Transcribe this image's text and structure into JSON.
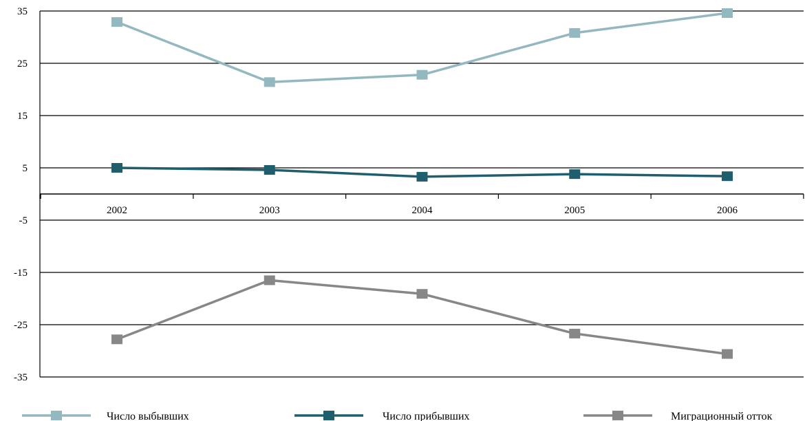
{
  "chart_data": {
    "type": "line",
    "title": "",
    "xlabel": "",
    "ylabel": "",
    "categories": [
      "2002",
      "2003",
      "2004",
      "2005",
      "2006"
    ],
    "ylim": [
      -35,
      35
    ],
    "yticks": [
      35,
      25,
      15,
      5,
      -5,
      -15,
      -25,
      -35
    ],
    "grid": true,
    "legend_position": "bottom",
    "series": [
      {
        "name": "Число выбывших",
        "values": [
          32.9,
          21.4,
          22.8,
          30.8,
          34.6
        ],
        "color": "#94b8c0"
      },
      {
        "name": "Число прибывших",
        "values": [
          5.0,
          4.6,
          3.3,
          3.8,
          3.4
        ],
        "color": "#1f5f6d"
      },
      {
        "name": "Миграционный отток",
        "values": [
          -27.8,
          -16.5,
          -19.1,
          -26.7,
          -30.6
        ],
        "color": "#878787"
      }
    ]
  }
}
